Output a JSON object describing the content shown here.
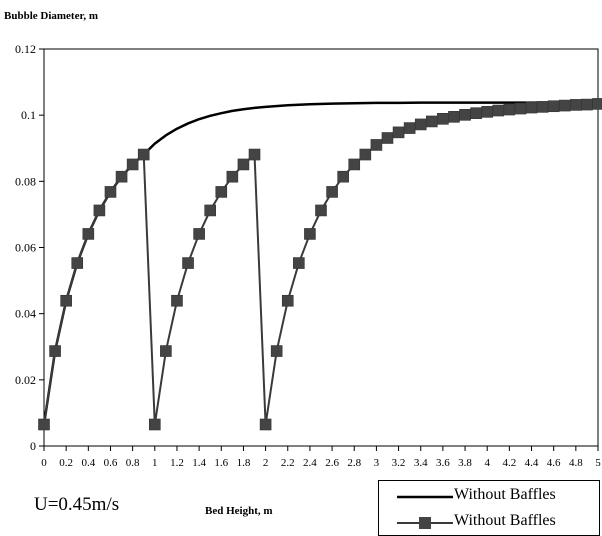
{
  "chart_data": {
    "type": "line",
    "ylabel": "Bubble Diameter, m",
    "xlabel": "Bed Height, m",
    "annotation": "U=0.45m/s",
    "xlim": [
      0,
      5
    ],
    "ylim": [
      0,
      0.12
    ],
    "x_ticks": [
      "0",
      "0.2",
      "0.4",
      "0.6",
      "0.8",
      "1",
      "1.2",
      "1.4",
      "1.6",
      "1.8",
      "2",
      "2.2",
      "2.4",
      "2.6",
      "2.8",
      "3",
      "3.2",
      "3.4",
      "3.6",
      "3.8",
      "4",
      "4.2",
      "4.4",
      "4.6",
      "4.8",
      "5"
    ],
    "y_ticks": [
      "0",
      "0.02",
      "0.04",
      "0.06",
      "0.08",
      "0.1",
      "0.12"
    ],
    "grid": false,
    "legend_position": "bottom-right",
    "series": [
      {
        "name": "Without Baffles",
        "style": "line",
        "color": "#000000",
        "x": [
          0,
          0.1,
          0.2,
          0.3,
          0.4,
          0.5,
          0.6,
          0.7,
          0.8,
          0.9,
          1.0,
          1.1,
          1.2,
          1.3,
          1.4,
          1.5,
          1.6,
          1.7,
          1.8,
          1.9,
          2.0,
          2.2,
          2.4,
          2.6,
          2.8,
          3.0,
          3.2,
          3.4,
          3.6,
          3.8,
          4.0,
          4.2,
          4.4,
          4.6,
          4.8,
          5.0
        ],
        "y": [
          0.0065,
          0.0287,
          0.0439,
          0.0553,
          0.0641,
          0.0712,
          0.0768,
          0.0814,
          0.0851,
          0.0881,
          0.0914,
          0.0939,
          0.0959,
          0.0975,
          0.0988,
          0.0998,
          0.1006,
          0.1013,
          0.1018,
          0.1022,
          0.1025,
          0.103,
          0.1033,
          0.1035,
          0.1036,
          0.1037,
          0.1037,
          0.1038,
          0.1038,
          0.1038,
          0.1038,
          0.1038,
          0.1038,
          0.1038,
          0.1038,
          0.1038
        ]
      },
      {
        "name": "Without Baffles",
        "style": "line-square-markers",
        "color": "#3a3a3a",
        "x": [
          0,
          0.1,
          0.2,
          0.3,
          0.4,
          0.5,
          0.6,
          0.7,
          0.8,
          0.9,
          1.0,
          1.1,
          1.2,
          1.3,
          1.4,
          1.5,
          1.6,
          1.7,
          1.8,
          1.9,
          2.0,
          2.1,
          2.2,
          2.3,
          2.4,
          2.5,
          2.6,
          2.7,
          2.8,
          2.9,
          3.0,
          3.1,
          3.2,
          3.3,
          3.4,
          3.5,
          3.6,
          3.7,
          3.8,
          3.9,
          4.0,
          4.1,
          4.2,
          4.3,
          4.4,
          4.5,
          4.6,
          4.7,
          4.8,
          4.9,
          5.0
        ],
        "y": [
          0.0065,
          0.0287,
          0.0439,
          0.0553,
          0.0641,
          0.0712,
          0.0768,
          0.0814,
          0.0851,
          0.0881,
          0.0065,
          0.0287,
          0.0439,
          0.0553,
          0.0641,
          0.0712,
          0.0768,
          0.0814,
          0.0851,
          0.0881,
          0.0065,
          0.0287,
          0.0439,
          0.0553,
          0.0641,
          0.0712,
          0.0768,
          0.0814,
          0.0851,
          0.0881,
          0.091,
          0.0931,
          0.0948,
          0.0961,
          0.0972,
          0.0981,
          0.0989,
          0.0995,
          0.1001,
          0.1006,
          0.101,
          0.1014,
          0.1017,
          0.102,
          0.1023,
          0.1025,
          0.1027,
          0.1029,
          0.1031,
          0.1032,
          0.1034
        ]
      }
    ]
  }
}
